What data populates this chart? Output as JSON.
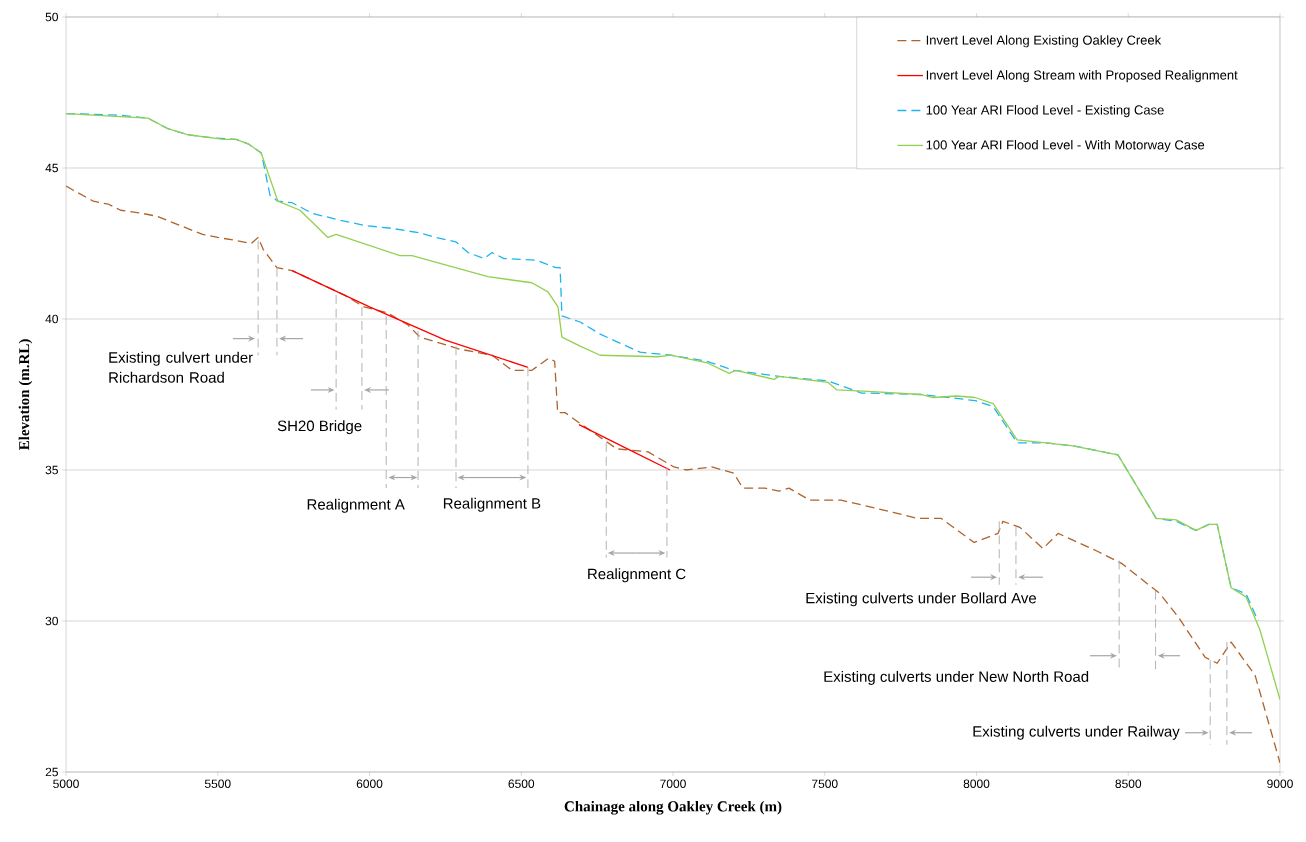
{
  "chart_data": {
    "type": "line",
    "xlabel": "Chainage along Oakley Creek (m)",
    "ylabel": "Elevation (m.RL)",
    "xlim": [
      5000,
      9000
    ],
    "ylim": [
      25,
      50
    ],
    "xticks": [
      5000,
      5500,
      6000,
      6500,
      7000,
      7500,
      8000,
      8500,
      9000
    ],
    "yticks": [
      25,
      30,
      35,
      40,
      45,
      50
    ],
    "grid": "y",
    "legend": "top right",
    "series": [
      {
        "name": "Invert Level Along Existing Oakley Creek",
        "color": "#b0622a",
        "line_style": "dashed",
        "x": [
          5000,
          5090,
          5140,
          5180,
          5250,
          5300,
          5400,
          5450,
          5500,
          5560,
          5610,
          5633,
          5650,
          5695,
          5745,
          5916,
          5982,
          6060,
          6127,
          6166,
          6298,
          6404,
          6470,
          6535,
          6590,
          6610,
          6620,
          6644,
          6700,
          6815,
          6918,
          7003,
          7043,
          7128,
          7200,
          7230,
          7303,
          7349,
          7382,
          7451,
          7554,
          7725,
          7804,
          7883,
          7992,
          8071,
          8087,
          8143,
          8219,
          8269,
          8400,
          8479,
          8605,
          8667,
          8753,
          8793,
          8839,
          8918,
          9000
        ],
        "values": [
          44.4,
          43.9,
          43.8,
          43.6,
          43.5,
          43.4,
          43.0,
          42.8,
          42.7,
          42.6,
          42.5,
          42.7,
          42.3,
          41.7,
          41.6,
          40.8,
          40.4,
          40.2,
          39.8,
          39.4,
          39.0,
          38.8,
          38.3,
          38.3,
          38.7,
          38.6,
          36.9,
          36.9,
          36.5,
          35.7,
          35.6,
          35.1,
          35.0,
          35.1,
          34.9,
          34.4,
          34.4,
          34.3,
          34.4,
          34.0,
          34.0,
          33.6,
          33.4,
          33.4,
          32.6,
          32.9,
          33.3,
          33.1,
          32.4,
          32.9,
          32.3,
          31.9,
          30.9,
          30.1,
          28.8,
          28.6,
          29.3,
          28.2,
          25.3
        ]
      },
      {
        "name": "Invert Level Along Stream with Proposed Realignment",
        "color": "#ff0000",
        "line_style": "solid",
        "x": [
          5745,
          6000,
          6250,
          6522,
          6600,
          6690,
          6850,
          6990
        ],
        "values": [
          41.6,
          40.4,
          39.3,
          38.4,
          null,
          36.5,
          35.7,
          35.0
        ]
      },
      {
        "name": "100 Year ARI Flood Level - Existing Case",
        "color": "#1cb5f0",
        "line_style": "dashed",
        "x": [
          5000,
          5178,
          5270,
          5336,
          5402,
          5481,
          5560,
          5600,
          5643,
          5652,
          5672,
          5698,
          5745,
          5811,
          5890,
          5982,
          6074,
          6166,
          6219,
          6285,
          6325,
          6377,
          6404,
          6443,
          6549,
          6614,
          6628,
          6634,
          6694,
          6760,
          6891,
          6993,
          7112,
          7200,
          7350,
          7511,
          7620,
          7817,
          7995,
          8055,
          8134,
          8229,
          8318,
          8466,
          8592,
          8658,
          8723,
          8766,
          8793,
          8839,
          8888,
          8928
        ],
        "values": [
          46.8,
          46.75,
          46.65,
          46.3,
          46.1,
          46.0,
          45.95,
          45.8,
          45.5,
          45.1,
          44.1,
          43.9,
          43.85,
          43.5,
          43.3,
          43.1,
          43.0,
          42.85,
          42.7,
          42.55,
          42.2,
          42.0,
          42.2,
          42.0,
          41.95,
          41.7,
          41.7,
          40.1,
          39.9,
          39.5,
          38.9,
          38.8,
          38.6,
          38.3,
          38.1,
          37.95,
          37.55,
          37.5,
          37.3,
          37.1,
          35.9,
          35.9,
          35.8,
          35.5,
          33.4,
          33.3,
          33.0,
          33.2,
          33.2,
          31.1,
          30.9,
          30.0
        ]
      },
      {
        "name": "100 Year ARI Flood Level - With Motorway Case",
        "color": "#92d050",
        "line_style": "solid",
        "x": [
          5000,
          5178,
          5270,
          5336,
          5402,
          5481,
          5520,
          5560,
          5600,
          5643,
          5698,
          5771,
          5863,
          5890,
          6100,
          6140,
          6390,
          6535,
          6588,
          6621,
          6634,
          6694,
          6760,
          6950,
          6993,
          7112,
          7185,
          7207,
          7333,
          7350,
          7511,
          7540,
          7643,
          7817,
          7857,
          7936,
          7995,
          8055,
          8134,
          8229,
          8318,
          8466,
          8592,
          8658,
          8723,
          8766,
          8793,
          8839,
          8888,
          8934,
          9000
        ],
        "values": [
          46.8,
          46.7,
          46.65,
          46.3,
          46.1,
          46.0,
          45.95,
          45.95,
          45.8,
          45.5,
          43.9,
          43.6,
          42.7,
          42.8,
          42.1,
          42.1,
          41.4,
          41.2,
          40.9,
          40.4,
          39.4,
          39.1,
          38.8,
          38.75,
          38.8,
          38.55,
          38.2,
          38.3,
          38.0,
          38.1,
          37.9,
          37.65,
          37.6,
          37.5,
          37.4,
          37.45,
          37.4,
          37.2,
          36.0,
          35.9,
          35.8,
          35.5,
          33.4,
          33.35,
          33.0,
          33.2,
          33.2,
          31.1,
          30.8,
          29.7,
          27.4
        ]
      },
      {
        "color": "#b4b4b4",
        "line_style": "dashed",
        "x": [
          5633,
          5633,
          null,
          5695,
          5695,
          null,
          5890,
          5890,
          null,
          5975,
          5975,
          null,
          6055,
          6055,
          null,
          6160,
          6160,
          null,
          6285,
          6285,
          null,
          6522,
          6522,
          null,
          6780,
          6780,
          null,
          6980,
          6980,
          null,
          8075,
          8075,
          null,
          8130,
          8130,
          null,
          8470,
          8470,
          null,
          8590,
          8590,
          null,
          8770,
          8770,
          null,
          8825,
          8825
        ],
        "values": [
          42.6,
          38.8,
          null,
          41.7,
          38.8,
          null,
          40.8,
          37.0,
          null,
          40.4,
          37.0,
          null,
          40.1,
          34.4,
          null,
          39.6,
          34.4,
          null,
          39.1,
          34.4,
          null,
          38.4,
          34.4,
          null,
          35.9,
          32.1,
          null,
          35.1,
          32.1,
          null,
          33.3,
          31.2,
          null,
          33.1,
          31.2,
          null,
          32.0,
          28.4,
          null,
          31.0,
          28.4,
          null,
          28.7,
          25.9,
          null,
          29.3,
          25.9
        ]
      },
      {
        "color": "#a6a6a6",
        "line_style": "solid",
        "x": [
          5550,
          5623,
          null,
          5781,
          5702,
          null,
          5807,
          5885,
          null,
          6064,
          5982,
          null,
          6110,
          6062,
          null,
          6110,
          6158,
          null,
          6404,
          6290,
          null,
          6404,
          6517,
          null,
          6880,
          6785,
          null,
          6880,
          6975,
          null,
          7982,
          8068,
          null,
          8219,
          8137,
          null,
          8374,
          8463,
          null,
          8671,
          8597,
          null,
          8687,
          8765,
          null,
          8908,
          8832
        ],
        "values": [
          39.35,
          39.35,
          null,
          39.35,
          39.35,
          null,
          37.65,
          37.65,
          null,
          37.65,
          37.65,
          null,
          34.75,
          34.75,
          null,
          34.75,
          34.75,
          null,
          34.75,
          34.75,
          null,
          34.75,
          34.75,
          null,
          32.25,
          32.25,
          null,
          32.25,
          32.25,
          null,
          31.45,
          31.45,
          null,
          31.45,
          31.45,
          null,
          28.85,
          28.85,
          null,
          28.85,
          28.85,
          null,
          26.3,
          26.3,
          null,
          26.3,
          26.3
        ]
      }
    ],
    "annotations": [
      "Existing culvert under Richardson Road",
      "SH20 Bridge",
      "Realignment A",
      "Realignment B",
      "Realignment C",
      "Existing culverts under Bollard Ave",
      "Existing culverts under New North Road",
      "Existing culverts under Railway"
    ]
  }
}
